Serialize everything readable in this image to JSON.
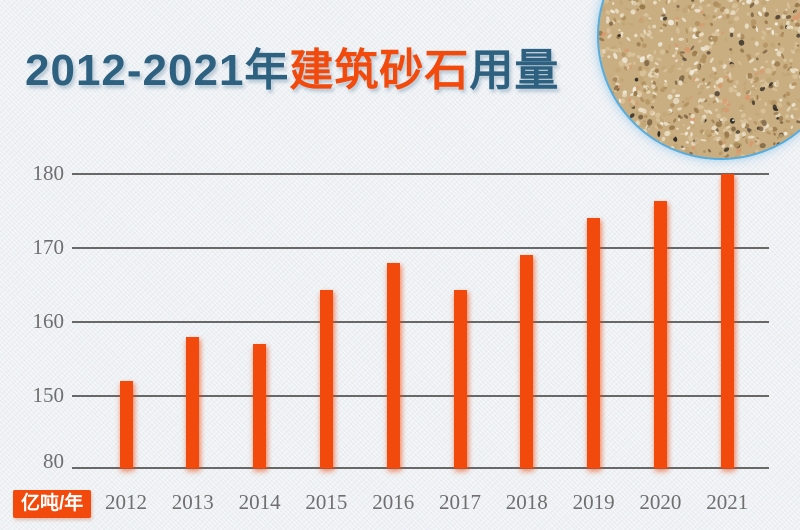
{
  "title": {
    "range": "2012-2021年",
    "subject": "建筑砂石",
    "suffix": "用量"
  },
  "unit_label": "亿吨/年",
  "colors": {
    "accent_orange": "#f24a0d",
    "title_blue": "#2e6180",
    "gridline": "#686868",
    "axis_text": "#6f6f6f",
    "background": "#eef1f4",
    "circle_border": "#55acdf"
  },
  "decorations": {
    "sand_photo": "circular close-up photo of sand and gravel aggregate"
  },
  "chart_data": {
    "type": "bar",
    "title": "2012-2021年建筑砂石用量",
    "categories": [
      "2012",
      "2013",
      "2014",
      "2015",
      "2016",
      "2017",
      "2018",
      "2019",
      "2020",
      "2021"
    ],
    "values": [
      152,
      158,
      157,
      164.3,
      168,
      164.3,
      169,
      174,
      176.3,
      180
    ],
    "xlabel": "",
    "ylabel": "亿吨/年",
    "yticks": [
      180,
      170,
      160,
      150,
      80
    ],
    "axis_note": "broken y-axis: baseline labeled 80, scale continues 150-180",
    "ylim": [
      80,
      180
    ],
    "grid": true,
    "legend": false,
    "bar_color": "#f2490d"
  }
}
